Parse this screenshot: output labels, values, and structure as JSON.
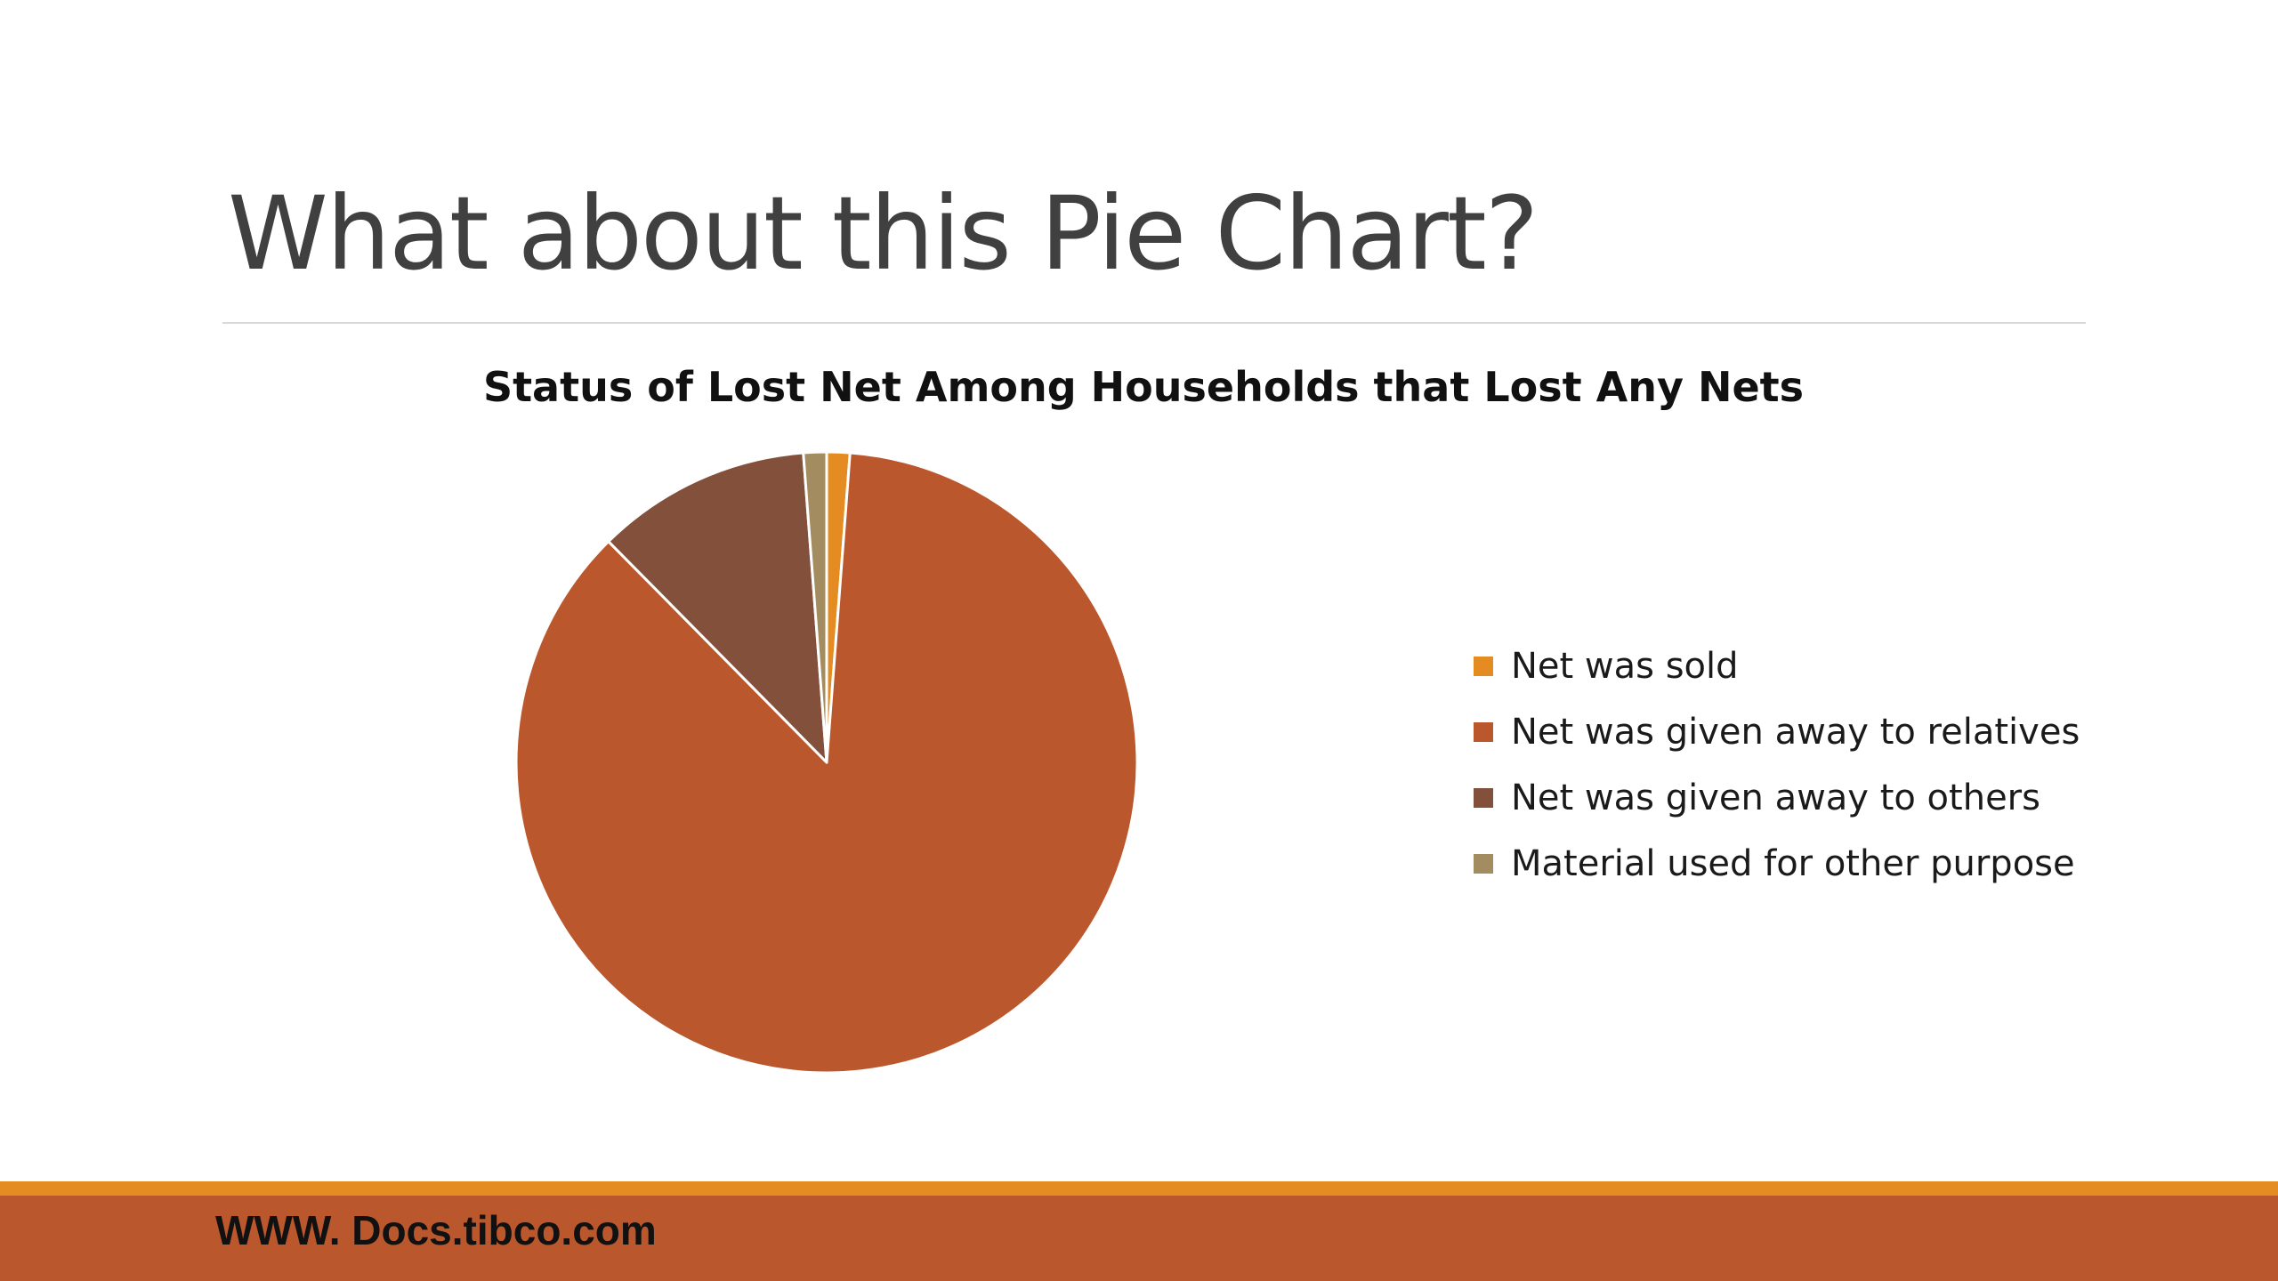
{
  "slide": {
    "title": "What about this Pie Chart?",
    "footer_text": "WWW. Docs.tibco.com",
    "colors": {
      "title_text": "#404040",
      "rule": "#d9d9d9",
      "footer_stripe": "#e48c22",
      "footer_band": "#ba572c"
    }
  },
  "chart_data": {
    "type": "pie",
    "title": "Status of Lost Net Among Households that Lost Any Nets",
    "categories": [
      "Net was sold",
      "Net was given away to relatives",
      "Net was given away to others",
      "Material used for other purpose"
    ],
    "values": [
      1.2,
      86.4,
      11.2,
      1.2
    ],
    "colors": [
      "#e48c22",
      "#ba572c",
      "#83513b",
      "#a38c60"
    ],
    "start_angle_deg": 0,
    "direction": "clockwise",
    "slice_border_color": "#ffffff",
    "legend_position": "right"
  }
}
